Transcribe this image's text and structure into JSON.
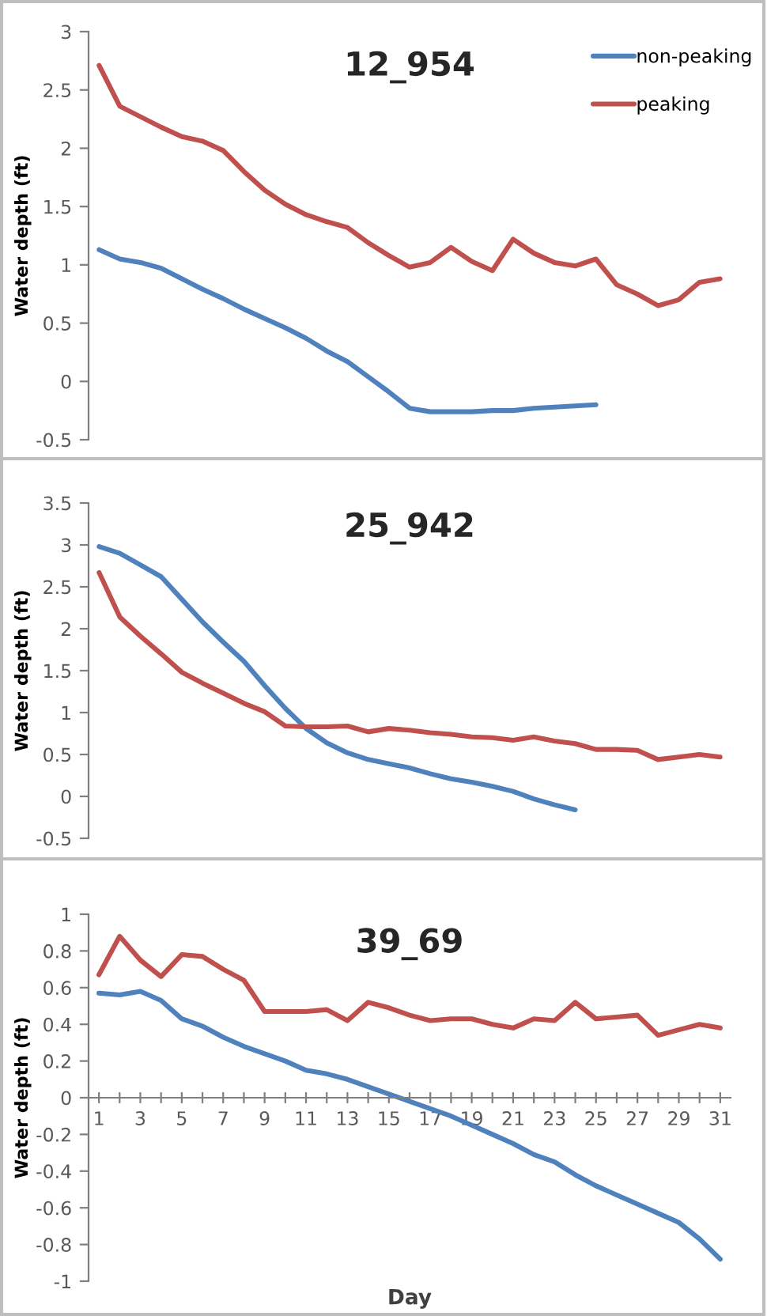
{
  "chart_data": [
    {
      "type": "line",
      "title": "12_954",
      "ylabel": "Water depth (ft)",
      "x": [
        1,
        2,
        3,
        4,
        5,
        6,
        7,
        8,
        9,
        10,
        11,
        12,
        13,
        14,
        15,
        16,
        17,
        18,
        19,
        20,
        21,
        22,
        23,
        24,
        25,
        26,
        27,
        28,
        29,
        30,
        31
      ],
      "ylim": [
        -0.5,
        3
      ],
      "yticks": [
        -0.5,
        0,
        0.5,
        1,
        1.5,
        2,
        2.5,
        3
      ],
      "tick_labels": "y",
      "grid": false,
      "legend": "top right",
      "series": [
        {
          "name": "non-peaking",
          "color": "#4f81bd",
          "values": [
            1.13,
            1.05,
            1.02,
            0.97,
            0.88,
            0.79,
            0.71,
            0.62,
            0.54,
            0.46,
            0.37,
            0.26,
            0.17,
            0.04,
            -0.09,
            -0.23,
            -0.26,
            -0.26,
            -0.26,
            -0.25,
            -0.25,
            -0.23,
            -0.22,
            -0.21,
            -0.2,
            null,
            null,
            null,
            null,
            null,
            null
          ]
        },
        {
          "name": "peaking",
          "color": "#c0504d",
          "values": [
            2.71,
            2.36,
            2.27,
            2.18,
            2.1,
            2.06,
            1.98,
            1.8,
            1.64,
            1.52,
            1.43,
            1.37,
            1.32,
            1.19,
            1.08,
            0.98,
            1.02,
            1.15,
            1.03,
            0.95,
            1.22,
            1.1,
            1.02,
            0.99,
            1.05,
            0.83,
            0.75,
            0.65,
            0.7,
            0.85,
            0.88
          ]
        }
      ]
    },
    {
      "type": "line",
      "title": "25_942",
      "ylabel": "Water depth (ft)",
      "x": [
        1,
        2,
        3,
        4,
        5,
        6,
        7,
        8,
        9,
        10,
        11,
        12,
        13,
        14,
        15,
        16,
        17,
        18,
        19,
        20,
        21,
        22,
        23,
        24,
        25,
        26,
        27,
        28,
        29,
        30,
        31
      ],
      "ylim": [
        -0.5,
        3.5
      ],
      "yticks": [
        -0.5,
        0,
        0.5,
        1,
        1.5,
        2,
        2.5,
        3,
        3.5
      ],
      "tick_labels": "y",
      "grid": false,
      "series": [
        {
          "color": "#4f81bd",
          "values": [
            2.98,
            2.9,
            2.76,
            2.62,
            2.35,
            2.08,
            1.84,
            1.61,
            1.32,
            1.05,
            0.81,
            0.64,
            0.52,
            0.44,
            0.39,
            0.34,
            0.27,
            0.21,
            0.17,
            0.12,
            0.06,
            -0.03,
            -0.1,
            -0.16,
            null,
            null,
            null,
            null,
            null,
            null,
            null
          ]
        },
        {
          "color": "#c0504d",
          "values": [
            2.67,
            2.14,
            1.91,
            1.7,
            1.48,
            1.35,
            1.23,
            1.11,
            1.01,
            0.84,
            0.83,
            0.83,
            0.84,
            0.77,
            0.81,
            0.79,
            0.76,
            0.74,
            0.71,
            0.7,
            0.67,
            0.71,
            0.66,
            0.63,
            0.56,
            0.56,
            0.55,
            0.44,
            0.47,
            0.5,
            0.47
          ]
        }
      ]
    },
    {
      "type": "line",
      "title": "39_69",
      "ylabel": "Water depth (ft)",
      "xlabel": "Day",
      "x": [
        1,
        2,
        3,
        4,
        5,
        6,
        7,
        8,
        9,
        10,
        11,
        12,
        13,
        14,
        15,
        16,
        17,
        18,
        19,
        20,
        21,
        22,
        23,
        24,
        25,
        26,
        27,
        28,
        29,
        30,
        31
      ],
      "xlim": [
        0.5,
        31.5
      ],
      "ylim": [
        -1,
        1
      ],
      "yticks": [
        -1,
        -0.8,
        -0.6,
        -0.4,
        -0.2,
        0,
        0.2,
        0.4,
        0.6,
        0.8,
        1
      ],
      "grid": false,
      "xticks": [
        1,
        {
          "value": 2,
          "label": null
        },
        3,
        {
          "value": 4,
          "label": null
        },
        5,
        {
          "value": 6,
          "label": null
        },
        7,
        {
          "value": 8,
          "label": null
        },
        9,
        {
          "value": 10,
          "label": null
        },
        11,
        {
          "value": 12,
          "label": null
        },
        13,
        {
          "value": 14,
          "label": null
        },
        15,
        {
          "value": 16,
          "label": null
        },
        17,
        {
          "value": 18,
          "label": null
        },
        19,
        {
          "value": 20,
          "label": null
        },
        21,
        {
          "value": 22,
          "label": null
        },
        23,
        {
          "value": 24,
          "label": null
        },
        25,
        {
          "value": 26,
          "label": null
        },
        27,
        {
          "value": 28,
          "label": null
        },
        29,
        {
          "value": 30,
          "label": null
        },
        31
      ],
      "series": [
        {
          "color": "#4f81bd",
          "values": [
            0.57,
            0.56,
            0.58,
            0.53,
            0.43,
            0.39,
            0.33,
            0.28,
            0.24,
            0.2,
            0.15,
            0.13,
            0.1,
            0.06,
            0.02,
            -0.02,
            -0.06,
            -0.1,
            -0.15,
            -0.2,
            -0.25,
            -0.31,
            -0.35,
            -0.42,
            -0.48,
            -0.53,
            -0.58,
            -0.63,
            -0.68,
            -0.77,
            -0.88
          ]
        },
        {
          "color": "#c0504d",
          "values": [
            0.67,
            0.88,
            0.75,
            0.66,
            0.78,
            0.77,
            0.7,
            0.64,
            0.47,
            0.47,
            0.47,
            0.48,
            0.42,
            0.52,
            0.49,
            0.45,
            0.42,
            0.43,
            0.43,
            0.4,
            0.38,
            0.43,
            0.42,
            0.52,
            0.43,
            0.44,
            0.45,
            0.34,
            0.37,
            0.4,
            0.38
          ]
        }
      ]
    }
  ]
}
